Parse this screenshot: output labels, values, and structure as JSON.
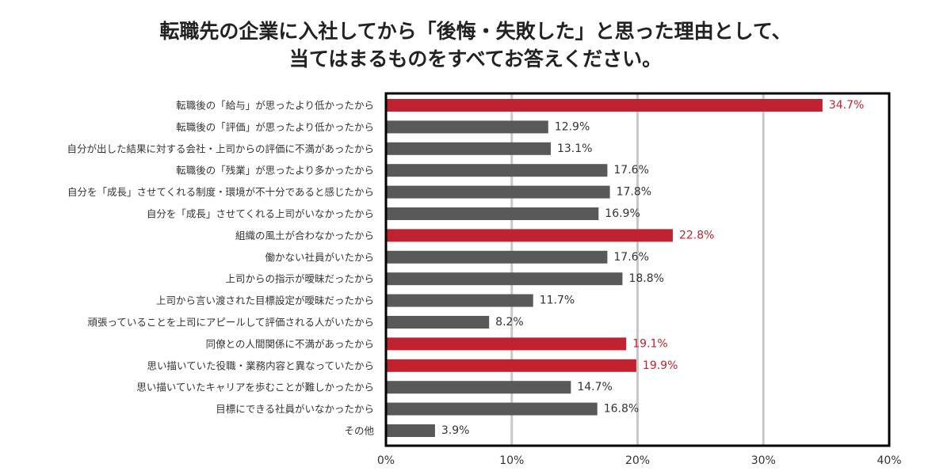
{
  "chart_data": {
    "type": "bar",
    "orientation": "horizontal",
    "title_lines": [
      "転職先の企業に入社してから「後悔・失敗した」と思った理由として、",
      "当てはまるものをすべてお答えください。"
    ],
    "categories": [
      "転職後の「給与」が思ったより低かったから",
      "転職後の「評価」が思ったより低かったから",
      "自分が出した結果に対する会社・上司からの評価に不満があったから",
      "転職後の「残業」が思ったより多かったから",
      "自分を「成長」させてくれる制度・環境が不十分であると感じたから",
      "自分を「成長」させてくれる上司がいなかったから",
      "組織の風土が合わなかったから",
      "働かない社員がいたから",
      "上司からの指示が曖昧だったから",
      "上司から言い渡された目標設定が曖昧だったから",
      "頑張っていることを上司にアピールして評価される人がいたから",
      "同僚との人間関係に不満があったから",
      "思い描いていた役職・業務内容と異なっていたから",
      "思い描いていたキャリアを歩むことが難しかったから",
      "目標にできる社員がいなかったから",
      "その他"
    ],
    "values": [
      34.7,
      12.9,
      13.1,
      17.6,
      17.8,
      16.9,
      22.8,
      17.6,
      18.8,
      11.7,
      8.2,
      19.1,
      19.9,
      14.7,
      16.8,
      3.9
    ],
    "value_labels": [
      "34.7%",
      "12.9%",
      "13.1%",
      "17.6%",
      "17.8%",
      "16.9%",
      "22.8%",
      "17.6%",
      "18.8%",
      "11.7%",
      "8.2%",
      "19.1%",
      "19.9%",
      "14.7%",
      "16.8%",
      "3.9%"
    ],
    "highlighted": [
      true,
      false,
      false,
      false,
      false,
      false,
      true,
      false,
      false,
      false,
      false,
      true,
      true,
      false,
      false,
      false
    ],
    "xlim": [
      0,
      40
    ],
    "xticks": [
      0,
      10,
      20,
      30,
      40
    ],
    "xtick_labels": [
      "0%",
      "10%",
      "20%",
      "30%",
      "40%"
    ],
    "grid": true,
    "xlabel": "",
    "ylabel": "",
    "colors": {
      "highlight": "#c0222f",
      "normal": "#595959",
      "grid": "#c8c8c8",
      "frame": "#000000",
      "highlight_text": "#c0222f",
      "normal_text": "#333333"
    }
  }
}
